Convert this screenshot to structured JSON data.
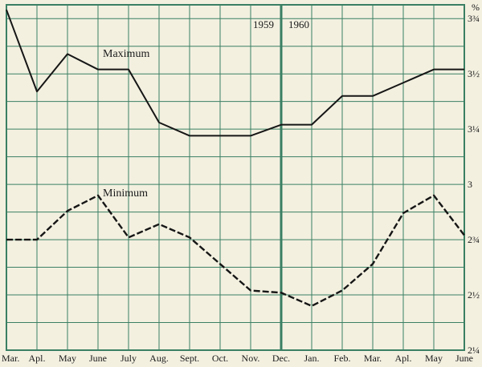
{
  "chart_data": {
    "type": "line",
    "unit_label": "%",
    "categories": [
      "Mar.",
      "Apl.",
      "May",
      "June",
      "July",
      "Aug.",
      "Sept.",
      "Oct.",
      "Nov.",
      "Dec.",
      "Jan.",
      "Feb.",
      "Mar.",
      "Apl.",
      "May",
      "June"
    ],
    "series": [
      {
        "name": "Maximum",
        "style": "solid",
        "values": [
          3.79,
          3.42,
          3.59,
          3.52,
          3.52,
          3.28,
          3.22,
          3.22,
          3.22,
          3.27,
          3.27,
          3.4,
          3.4,
          3.46,
          3.52,
          3.52
        ]
      },
      {
        "name": "Minimum",
        "style": "dashed",
        "values": [
          2.75,
          2.75,
          2.88,
          2.95,
          2.76,
          2.82,
          2.76,
          2.64,
          2.52,
          2.51,
          2.45,
          2.52,
          2.64,
          2.87,
          2.95,
          2.77
        ]
      }
    ],
    "y_ticks": [
      {
        "value": 3.75,
        "label": "3¾"
      },
      {
        "value": 3.5,
        "label": "3½"
      },
      {
        "value": 3.25,
        "label": "3¼"
      },
      {
        "value": 3.0,
        "label": "3"
      },
      {
        "value": 2.75,
        "label": "2¾"
      },
      {
        "value": 2.5,
        "label": "2½"
      },
      {
        "value": 2.25,
        "label": "2¼"
      }
    ],
    "ylim": [
      2.25,
      3.8125
    ],
    "y_minor_step": 0.125,
    "grid": true,
    "legend_position": "inline-labels",
    "year_divider": {
      "after_category_index": 9,
      "left_label": "1959",
      "right_label": "1960"
    },
    "colors": {
      "background": "#f3f0e0",
      "grid": "#3a7f63",
      "line": "#161616",
      "text": "#1a1a1a"
    }
  }
}
